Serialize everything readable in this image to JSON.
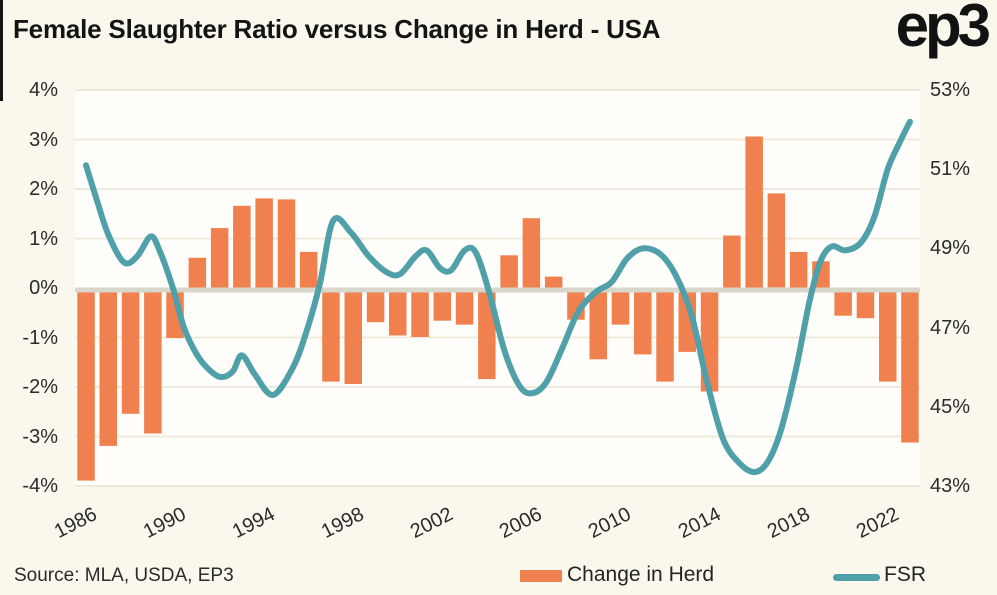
{
  "header": {
    "title": "Female Slaughter Ratio versus Change in Herd - USA",
    "logo": "ep3"
  },
  "footer": {
    "source": "Source: MLA, USDA, EP3"
  },
  "legend": {
    "items": [
      {
        "label": "Change in Herd",
        "type": "bar",
        "color": "#f0814f"
      },
      {
        "label": "FSR",
        "type": "line",
        "color": "#4fa0a8"
      }
    ]
  },
  "colors": {
    "background": "#faf7ed",
    "plot_background": "#fffefb",
    "gridline": "#efebdc",
    "zero_line": "#d9d6cb",
    "bar": "#f0814f",
    "line": "#4fa0a8",
    "text": "#2b2b2b",
    "title": "#141414"
  },
  "axes": {
    "left": {
      "ticks": [
        "4%",
        "3%",
        "2%",
        "1%",
        "0%",
        "-1%",
        "-2%",
        "-3%",
        "-4%"
      ],
      "tick_values": [
        4,
        3,
        2,
        1,
        0,
        -1,
        -2,
        -3,
        -4
      ],
      "range": [
        -4,
        4
      ]
    },
    "right": {
      "ticks": [
        "53%",
        "51%",
        "49%",
        "47%",
        "45%",
        "43%"
      ],
      "tick_values": [
        53,
        51,
        49,
        47,
        45,
        43
      ],
      "range": [
        43,
        53
      ]
    },
    "x": {
      "ticks": [
        "1986",
        "1990",
        "1994",
        "1998",
        "2002",
        "2006",
        "2010",
        "2014",
        "2018",
        "2022"
      ],
      "tick_years": [
        1986,
        1990,
        1994,
        1998,
        2002,
        2006,
        2010,
        2014,
        2018,
        2022
      ]
    }
  },
  "chart_data": [
    {
      "type": "bar",
      "name": "Change in Herd",
      "title": "Female Slaughter Ratio versus Change in Herd - USA",
      "axis": "left",
      "ylim": [
        -4,
        4
      ],
      "grid": true,
      "legend_position": "bottom",
      "categories": [
        1986,
        1987,
        1988,
        1989,
        1990,
        1991,
        1992,
        1993,
        1994,
        1995,
        1996,
        1997,
        1998,
        1999,
        2000,
        2001,
        2002,
        2003,
        2004,
        2005,
        2006,
        2007,
        2008,
        2009,
        2010,
        2011,
        2012,
        2013,
        2014,
        2015,
        2016,
        2017,
        2018,
        2019,
        2020,
        2021,
        2022,
        2023
      ],
      "values": [
        -3.85,
        -3.15,
        -2.5,
        -2.9,
        -0.97,
        0.6,
        1.2,
        1.65,
        1.8,
        1.78,
        0.72,
        -1.85,
        -1.9,
        -0.65,
        -0.92,
        -0.95,
        -0.62,
        -0.7,
        -1.8,
        0.65,
        1.4,
        0.22,
        -0.6,
        -1.4,
        -0.7,
        -1.3,
        -1.85,
        -1.25,
        -2.05,
        1.05,
        3.05,
        1.9,
        0.72,
        0.53,
        -0.52,
        -0.57,
        -1.85,
        -3.08
      ]
    },
    {
      "type": "line",
      "name": "FSR",
      "axis": "right",
      "ylim": [
        43,
        53
      ],
      "x": [
        1986,
        1986.5,
        1987,
        1987.7,
        1988.3,
        1988.9,
        1989.3,
        1989.9,
        1990.4,
        1991,
        1991.6,
        1992.1,
        1992.6,
        1993,
        1993.6,
        1994.4,
        1995.3,
        1995.9,
        1996.5,
        1997.1,
        1997.9,
        1998.7,
        1999.5,
        2000.1,
        2000.8,
        2001.3,
        2001.9,
        2002.4,
        2003,
        2003.5,
        2004.1,
        2004.8,
        2005.5,
        2006.1,
        2006.7,
        2007.4,
        2008.1,
        2008.9,
        2009.6,
        2010.3,
        2011,
        2011.8,
        2012.5,
        2013.2,
        2013.9,
        2014.6,
        2015.3,
        2016,
        2016.6,
        2017.2,
        2017.9,
        2018.5,
        2019,
        2019.5,
        2020.1,
        2020.8,
        2021.4,
        2022,
        2022.6,
        2023
      ],
      "values": [
        51.1,
        50.2,
        49.35,
        48.65,
        48.8,
        49.3,
        48.95,
        48.0,
        47.0,
        46.3,
        45.9,
        45.75,
        45.9,
        46.3,
        45.8,
        45.3,
        46.0,
        46.9,
        48.1,
        49.7,
        49.4,
        48.8,
        48.4,
        48.35,
        48.8,
        48.95,
        48.5,
        48.45,
        48.95,
        48.9,
        47.9,
        46.4,
        45.5,
        45.35,
        45.65,
        46.5,
        47.4,
        47.9,
        48.15,
        48.75,
        49.0,
        48.85,
        48.3,
        47.3,
        45.6,
        44.2,
        43.6,
        43.35,
        43.6,
        44.4,
        46.0,
        47.7,
        48.7,
        49.05,
        48.95,
        49.15,
        49.8,
        51.0,
        51.75,
        52.2
      ]
    }
  ]
}
